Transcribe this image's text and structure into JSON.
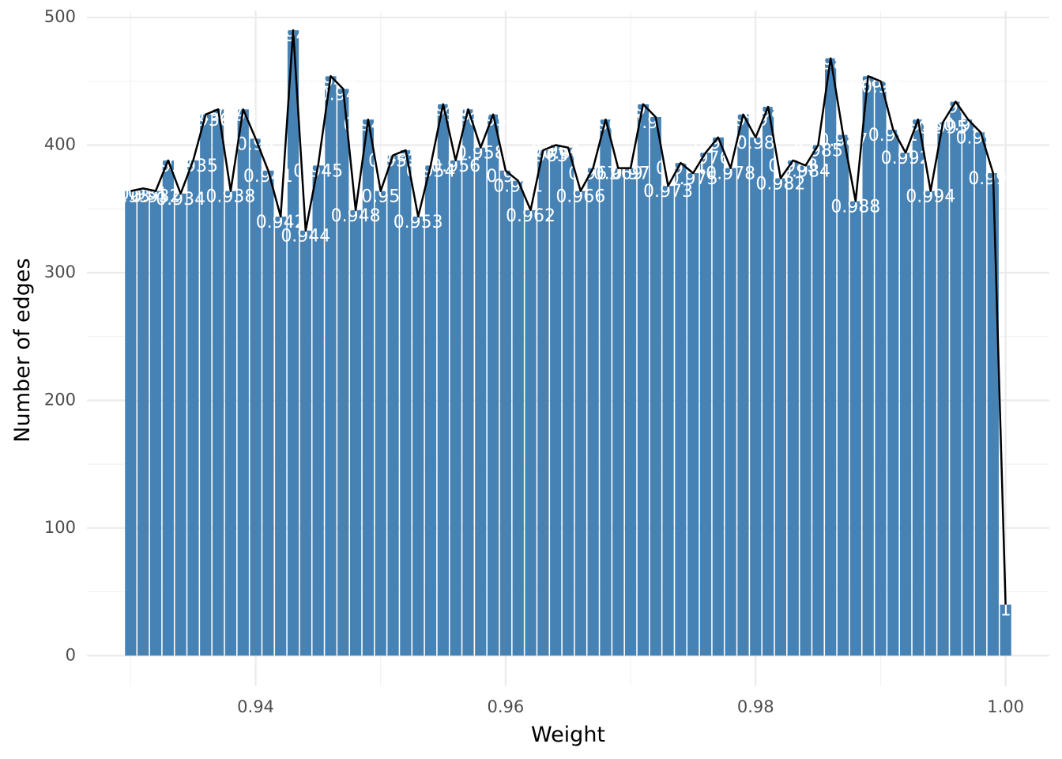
{
  "chart_data": {
    "type": "bar",
    "xlabel": "Weight",
    "ylabel": "Number of edges",
    "xlim": [
      0.9265,
      1.0035
    ],
    "ylim": [
      -24,
      505
    ],
    "x_ticks": [
      "0.94",
      "0.96",
      "0.98",
      "1.00"
    ],
    "y_ticks": [
      "0",
      "100",
      "200",
      "300",
      "400",
      "500"
    ],
    "grid": true,
    "bar_color": "#4682B4",
    "line_color": "#000000",
    "x": [
      0.93,
      0.931,
      0.932,
      0.933,
      0.934,
      0.935,
      0.936,
      0.937,
      0.938,
      0.939,
      0.94,
      0.941,
      0.942,
      0.943,
      0.944,
      0.945,
      0.946,
      0.947,
      0.948,
      0.949,
      0.95,
      0.951,
      0.952,
      0.953,
      0.954,
      0.955,
      0.956,
      0.957,
      0.958,
      0.959,
      0.96,
      0.961,
      0.962,
      0.963,
      0.964,
      0.965,
      0.966,
      0.967,
      0.968,
      0.969,
      0.97,
      0.971,
      0.972,
      0.973,
      0.974,
      0.975,
      0.976,
      0.977,
      0.978,
      0.979,
      0.98,
      0.981,
      0.982,
      0.983,
      0.984,
      0.985,
      0.986,
      0.987,
      0.988,
      0.989,
      0.99,
      0.991,
      0.992,
      0.993,
      0.994,
      0.995,
      0.996,
      0.997,
      0.998,
      0.999,
      1.0
    ],
    "values": [
      364,
      366,
      364,
      388,
      362,
      388,
      424,
      428,
      364,
      428,
      405,
      380,
      344,
      490,
      333,
      384,
      454,
      444,
      349,
      420,
      364,
      392,
      396,
      344,
      384,
      432,
      388,
      428,
      398,
      424,
      380,
      372,
      349,
      396,
      400,
      398,
      364,
      382,
      420,
      382,
      382,
      432,
      422,
      368,
      386,
      378,
      394,
      406,
      382,
      424,
      406,
      430,
      374,
      388,
      384,
      400,
      468,
      408,
      356,
      454,
      450,
      412,
      394,
      420,
      364,
      418,
      434,
      420,
      410,
      378,
      40
    ],
    "labels": [
      "0.93",
      "0.931",
      "0.932",
      "0.933",
      "0.934",
      "0.935",
      "0.936",
      "0.937",
      "0.938",
      "0.939",
      "0.94",
      "0.941",
      "0.942",
      "0.943",
      "0.944",
      "0.945",
      "0.946",
      "0.947",
      "0.948",
      "0.949",
      "0.95",
      "0.951",
      "0.952",
      "0.953",
      "0.954",
      "0.955",
      "0.956",
      "0.957",
      "0.958",
      "0.959",
      "0.96",
      "0.961",
      "0.962",
      "0.963",
      "0.964",
      "0.965",
      "0.966",
      "0.967",
      "0.968",
      "0.969",
      "0.97",
      "0.971",
      "0.972",
      "0.973",
      "0.974",
      "0.975",
      "0.976",
      "0.977",
      "0.978",
      "0.979",
      "0.98",
      "0.981",
      "0.982",
      "0.983",
      "0.984",
      "0.985",
      "0.986",
      "0.987",
      "0.988",
      "0.989",
      "0.99",
      "0.991",
      "0.992",
      "0.993",
      "0.994",
      "0.995",
      "0.996",
      "0.997",
      "0.998",
      "0.999",
      "1"
    ]
  }
}
